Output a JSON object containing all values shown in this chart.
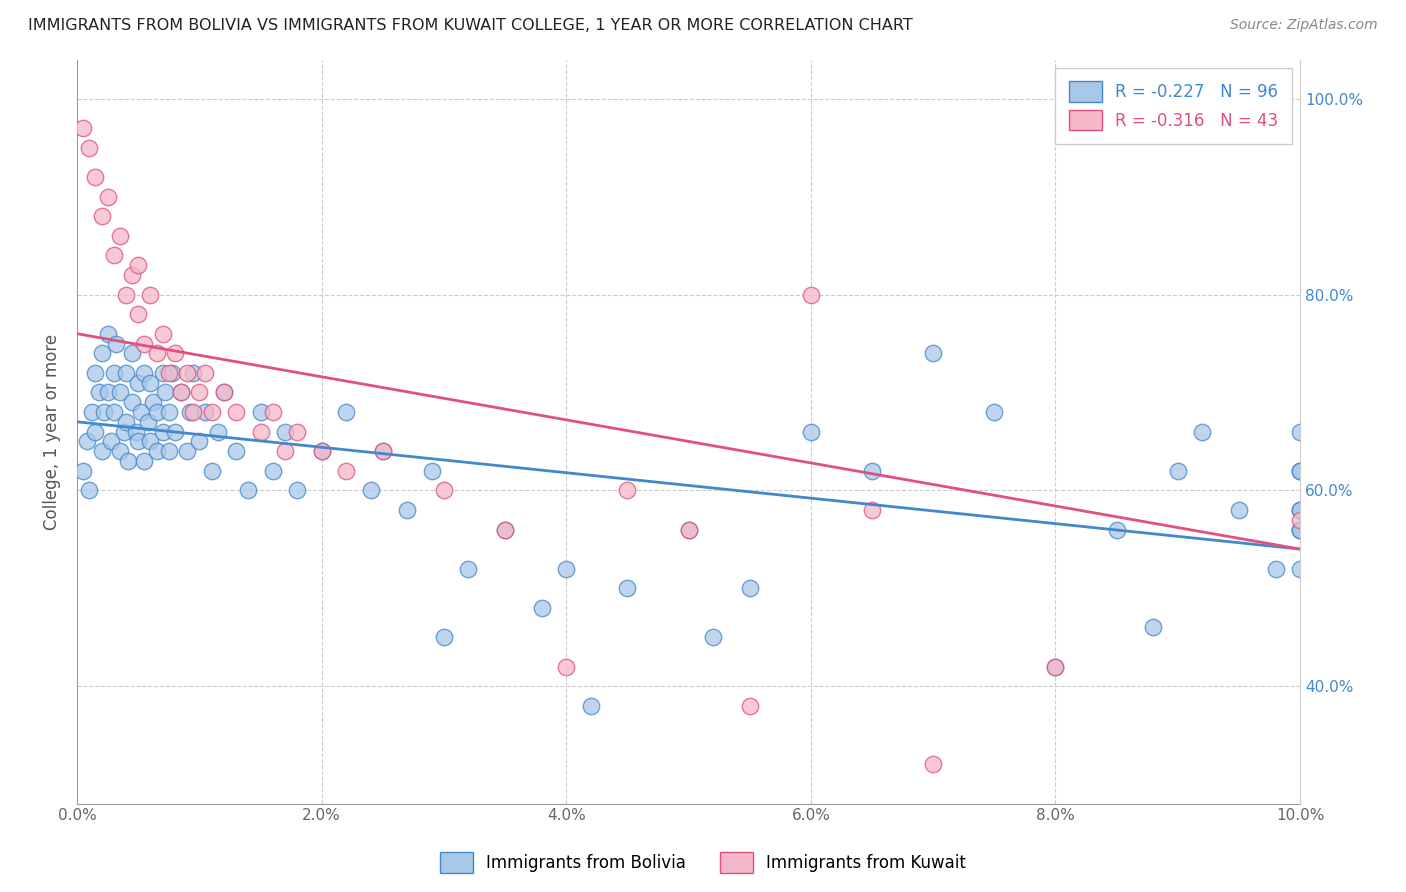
{
  "title": "IMMIGRANTS FROM BOLIVIA VS IMMIGRANTS FROM KUWAIT COLLEGE, 1 YEAR OR MORE CORRELATION CHART",
  "source": "Source: ZipAtlas.com",
  "ylabel": "College, 1 year or more",
  "xmin": 0.0,
  "xmax": 10.0,
  "ymin": 28.0,
  "ymax": 104.0,
  "yticks": [
    40.0,
    60.0,
    80.0,
    100.0
  ],
  "xticks": [
    0.0,
    2.0,
    4.0,
    6.0,
    8.0,
    10.0
  ],
  "bolivia_R": -0.227,
  "bolivia_N": 96,
  "kuwait_R": -0.316,
  "kuwait_N": 43,
  "bolivia_color": "#a8c8e8",
  "kuwait_color": "#f5b8c8",
  "bolivia_line_color": "#4488cc",
  "kuwait_line_color": "#e05080",
  "bolivia_line_y0": 67.0,
  "bolivia_line_y1": 54.0,
  "kuwait_line_y0": 76.0,
  "kuwait_line_y1": 54.0,
  "bolivia_scatter_x": [
    0.05,
    0.08,
    0.1,
    0.12,
    0.15,
    0.15,
    0.18,
    0.2,
    0.2,
    0.22,
    0.25,
    0.25,
    0.28,
    0.3,
    0.3,
    0.32,
    0.35,
    0.35,
    0.38,
    0.4,
    0.4,
    0.42,
    0.45,
    0.45,
    0.48,
    0.5,
    0.5,
    0.52,
    0.55,
    0.55,
    0.58,
    0.6,
    0.6,
    0.62,
    0.65,
    0.65,
    0.7,
    0.7,
    0.72,
    0.75,
    0.75,
    0.78,
    0.8,
    0.85,
    0.9,
    0.92,
    0.95,
    1.0,
    1.05,
    1.1,
    1.15,
    1.2,
    1.3,
    1.4,
    1.5,
    1.6,
    1.7,
    1.8,
    2.0,
    2.2,
    2.4,
    2.5,
    2.7,
    2.9,
    3.0,
    3.2,
    3.5,
    3.8,
    4.0,
    4.2,
    4.5,
    5.0,
    5.2,
    5.5,
    6.0,
    6.5,
    7.0,
    7.5,
    8.0,
    8.5,
    8.8,
    9.0,
    9.2,
    9.5,
    9.8,
    10.0,
    10.0,
    10.0,
    10.0,
    10.0,
    10.0,
    10.0,
    10.0,
    10.0,
    10.0,
    10.0
  ],
  "bolivia_scatter_y": [
    62.0,
    65.0,
    60.0,
    68.0,
    72.0,
    66.0,
    70.0,
    74.0,
    64.0,
    68.0,
    76.0,
    70.0,
    65.0,
    72.0,
    68.0,
    75.0,
    70.0,
    64.0,
    66.0,
    72.0,
    67.0,
    63.0,
    69.0,
    74.0,
    66.0,
    71.0,
    65.0,
    68.0,
    72.0,
    63.0,
    67.0,
    71.0,
    65.0,
    69.0,
    64.0,
    68.0,
    72.0,
    66.0,
    70.0,
    64.0,
    68.0,
    72.0,
    66.0,
    70.0,
    64.0,
    68.0,
    72.0,
    65.0,
    68.0,
    62.0,
    66.0,
    70.0,
    64.0,
    60.0,
    68.0,
    62.0,
    66.0,
    60.0,
    64.0,
    68.0,
    60.0,
    64.0,
    58.0,
    62.0,
    45.0,
    52.0,
    56.0,
    48.0,
    52.0,
    38.0,
    50.0,
    56.0,
    45.0,
    50.0,
    66.0,
    62.0,
    74.0,
    68.0,
    42.0,
    56.0,
    46.0,
    62.0,
    66.0,
    58.0,
    52.0,
    56.0,
    62.0,
    58.0,
    52.0,
    56.0,
    62.0,
    58.0,
    66.0,
    56.0,
    62.0,
    58.0
  ],
  "kuwait_scatter_x": [
    0.05,
    0.1,
    0.15,
    0.2,
    0.25,
    0.3,
    0.35,
    0.4,
    0.45,
    0.5,
    0.5,
    0.55,
    0.6,
    0.65,
    0.7,
    0.75,
    0.8,
    0.85,
    0.9,
    0.95,
    1.0,
    1.05,
    1.1,
    1.2,
    1.3,
    1.5,
    1.6,
    1.7,
    1.8,
    2.0,
    2.2,
    2.5,
    3.0,
    3.5,
    4.0,
    4.5,
    5.0,
    5.5,
    6.0,
    6.5,
    7.0,
    8.0,
    10.0
  ],
  "kuwait_scatter_y": [
    97.0,
    95.0,
    92.0,
    88.0,
    90.0,
    84.0,
    86.0,
    80.0,
    82.0,
    78.0,
    83.0,
    75.0,
    80.0,
    74.0,
    76.0,
    72.0,
    74.0,
    70.0,
    72.0,
    68.0,
    70.0,
    72.0,
    68.0,
    70.0,
    68.0,
    66.0,
    68.0,
    64.0,
    66.0,
    64.0,
    62.0,
    64.0,
    60.0,
    56.0,
    42.0,
    60.0,
    56.0,
    38.0,
    80.0,
    58.0,
    32.0,
    42.0,
    57.0
  ]
}
